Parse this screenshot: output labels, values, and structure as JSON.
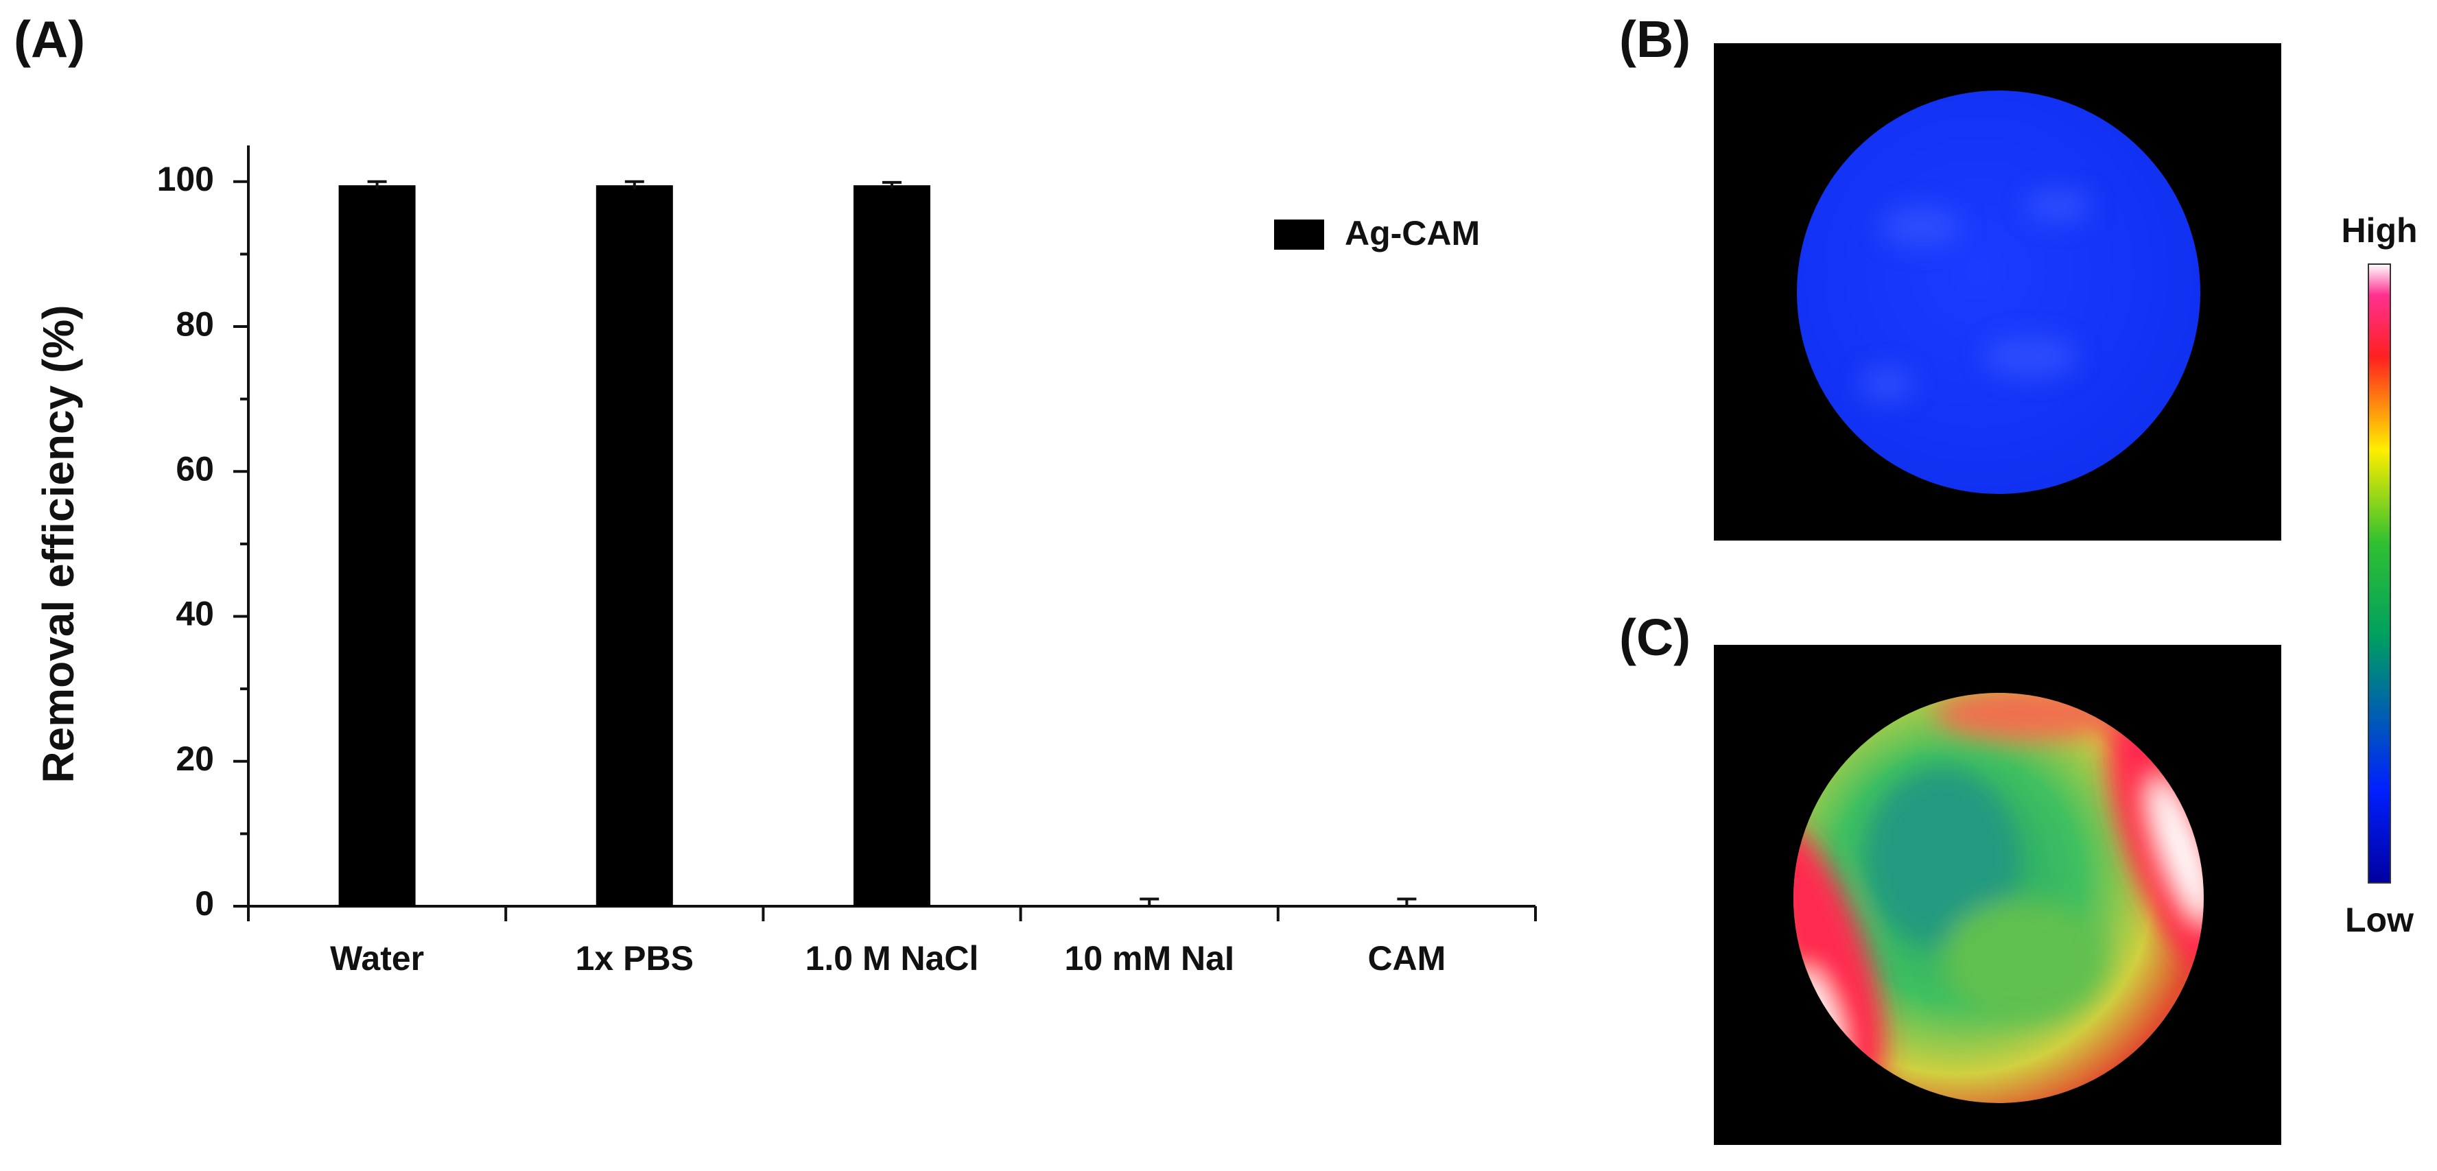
{
  "chart_data": {
    "type": "bar",
    "panel_label": "(A)",
    "y_label": "Removal efficiency (%)",
    "categories": [
      "Water",
      "1x PBS",
      "1.0 M NaCl",
      "10 mM NaI",
      "CAM"
    ],
    "series": [
      {
        "name": "Ag-CAM",
        "color": "#000000",
        "values": [
          99.5,
          99.5,
          99.5,
          0,
          0
        ],
        "errors": [
          0.5,
          0.5,
          0.4,
          1,
          1
        ]
      }
    ],
    "ylim": [
      0,
      105
    ],
    "yticks": [
      0,
      20,
      40,
      60,
      80,
      100
    ],
    "minor_yticks": [
      10,
      30,
      50,
      70,
      90
    ]
  },
  "panels": [
    {
      "label": "(B)"
    },
    {
      "label": "(C)"
    }
  ],
  "colorbar": {
    "high": "High",
    "low": "Low"
  }
}
